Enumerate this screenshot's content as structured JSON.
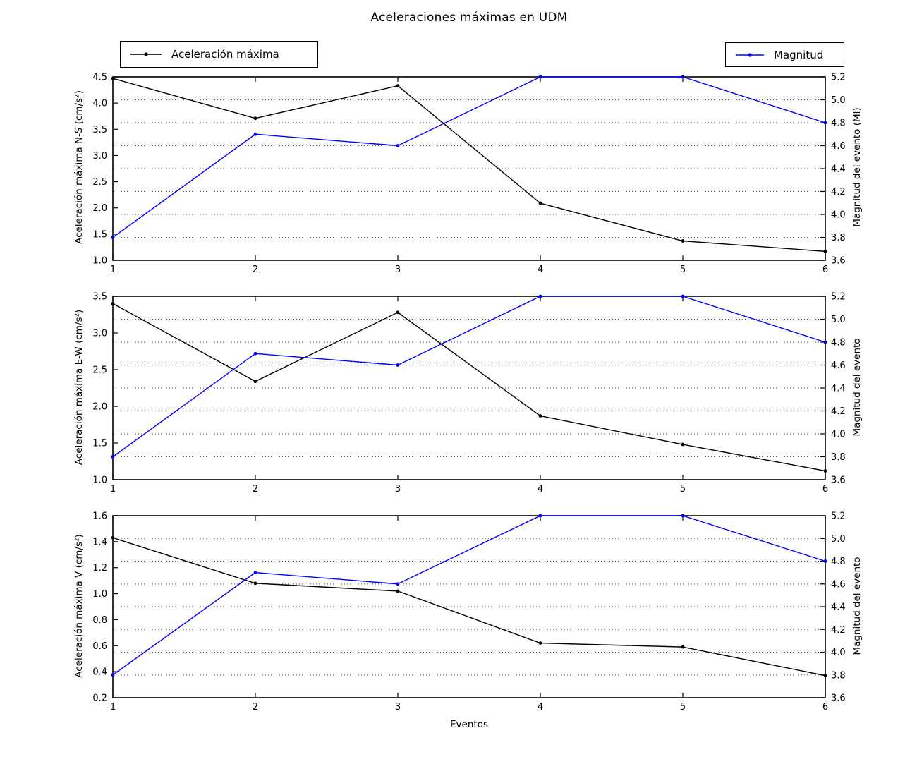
{
  "title": "Aceleraciones máximas en UDM",
  "xlabel": "Eventos",
  "legend": {
    "acceleration": "Aceleración máxima",
    "magnitude": "Magnitud"
  },
  "colors": {
    "acceleration": "#000000",
    "magnitude": "#0000ff",
    "grid": "#555555",
    "frame": "#000000"
  },
  "chart_data": [
    {
      "type": "line",
      "position": "top",
      "x": [
        1,
        2,
        3,
        4,
        5,
        6
      ],
      "xticks": [
        1,
        2,
        3,
        4,
        5,
        6
      ],
      "ylabel_left": "Aceleración máxima N-S (cm/s²)",
      "ylabel_right": "Magnitud del evento (Ml)",
      "ylim_left": [
        1.0,
        4.5
      ],
      "yticks_left": [
        1.0,
        1.5,
        2.0,
        2.5,
        3.0,
        3.5,
        4.0,
        4.5
      ],
      "ylim_right": [
        3.6,
        5.2
      ],
      "yticks_right": [
        3.6,
        3.8,
        4.0,
        4.2,
        4.4,
        4.6,
        4.8,
        5.0,
        5.2
      ],
      "grid": "horizontal-dotted-at-right-ticks",
      "legend_position": "above",
      "series": [
        {
          "name": "Aceleración máxima",
          "axis": "left",
          "color": "#000000",
          "marker": "dot",
          "values": [
            4.47,
            3.71,
            4.33,
            2.09,
            1.37,
            1.17
          ]
        },
        {
          "name": "Magnitud",
          "axis": "right",
          "color": "#0000ff",
          "marker": "dot",
          "values": [
            3.8,
            4.7,
            4.6,
            5.2,
            5.2,
            4.8
          ]
        }
      ]
    },
    {
      "type": "line",
      "position": "middle",
      "x": [
        1,
        2,
        3,
        4,
        5,
        6
      ],
      "xticks": [
        1,
        2,
        3,
        4,
        5,
        6
      ],
      "ylabel_left": "Aceleración máxima E-W (cm/s²)",
      "ylabel_right": "Magnitud del evento",
      "ylim_left": [
        1.0,
        3.5
      ],
      "yticks_left": [
        1.0,
        1.5,
        2.0,
        2.5,
        3.0,
        3.5
      ],
      "ylim_right": [
        3.6,
        5.2
      ],
      "yticks_right": [
        3.6,
        3.8,
        4.0,
        4.2,
        4.4,
        4.6,
        4.8,
        5.0,
        5.2
      ],
      "grid": "horizontal-dotted-at-right-ticks",
      "series": [
        {
          "name": "Aceleración máxima",
          "axis": "left",
          "color": "#000000",
          "marker": "dot",
          "values": [
            3.4,
            2.34,
            3.28,
            1.87,
            1.48,
            1.12
          ]
        },
        {
          "name": "Magnitud",
          "axis": "right",
          "color": "#0000ff",
          "marker": "dot",
          "values": [
            3.8,
            4.7,
            4.6,
            5.2,
            5.2,
            4.8
          ]
        }
      ]
    },
    {
      "type": "line",
      "position": "bottom",
      "x": [
        1,
        2,
        3,
        4,
        5,
        6
      ],
      "xticks": [
        1,
        2,
        3,
        4,
        5,
        6
      ],
      "xlabel": "Eventos",
      "ylabel_left": "Aceleración máxima V (cm/s²)",
      "ylabel_right": "Magnitud del evento",
      "ylim_left": [
        0.2,
        1.6
      ],
      "yticks_left": [
        0.2,
        0.4,
        0.6,
        0.8,
        1.0,
        1.2,
        1.4,
        1.6
      ],
      "ylim_right": [
        3.6,
        5.2
      ],
      "yticks_right": [
        3.6,
        3.8,
        4.0,
        4.2,
        4.4,
        4.6,
        4.8,
        5.0,
        5.2
      ],
      "grid": "horizontal-dotted-at-right-ticks",
      "series": [
        {
          "name": "Aceleración máxima",
          "axis": "left",
          "color": "#000000",
          "marker": "dot",
          "values": [
            1.43,
            1.08,
            1.02,
            0.62,
            0.59,
            0.37
          ]
        },
        {
          "name": "Magnitud",
          "axis": "right",
          "color": "#0000ff",
          "marker": "dot",
          "values": [
            3.8,
            4.7,
            4.6,
            5.2,
            5.2,
            4.8
          ]
        }
      ]
    }
  ]
}
